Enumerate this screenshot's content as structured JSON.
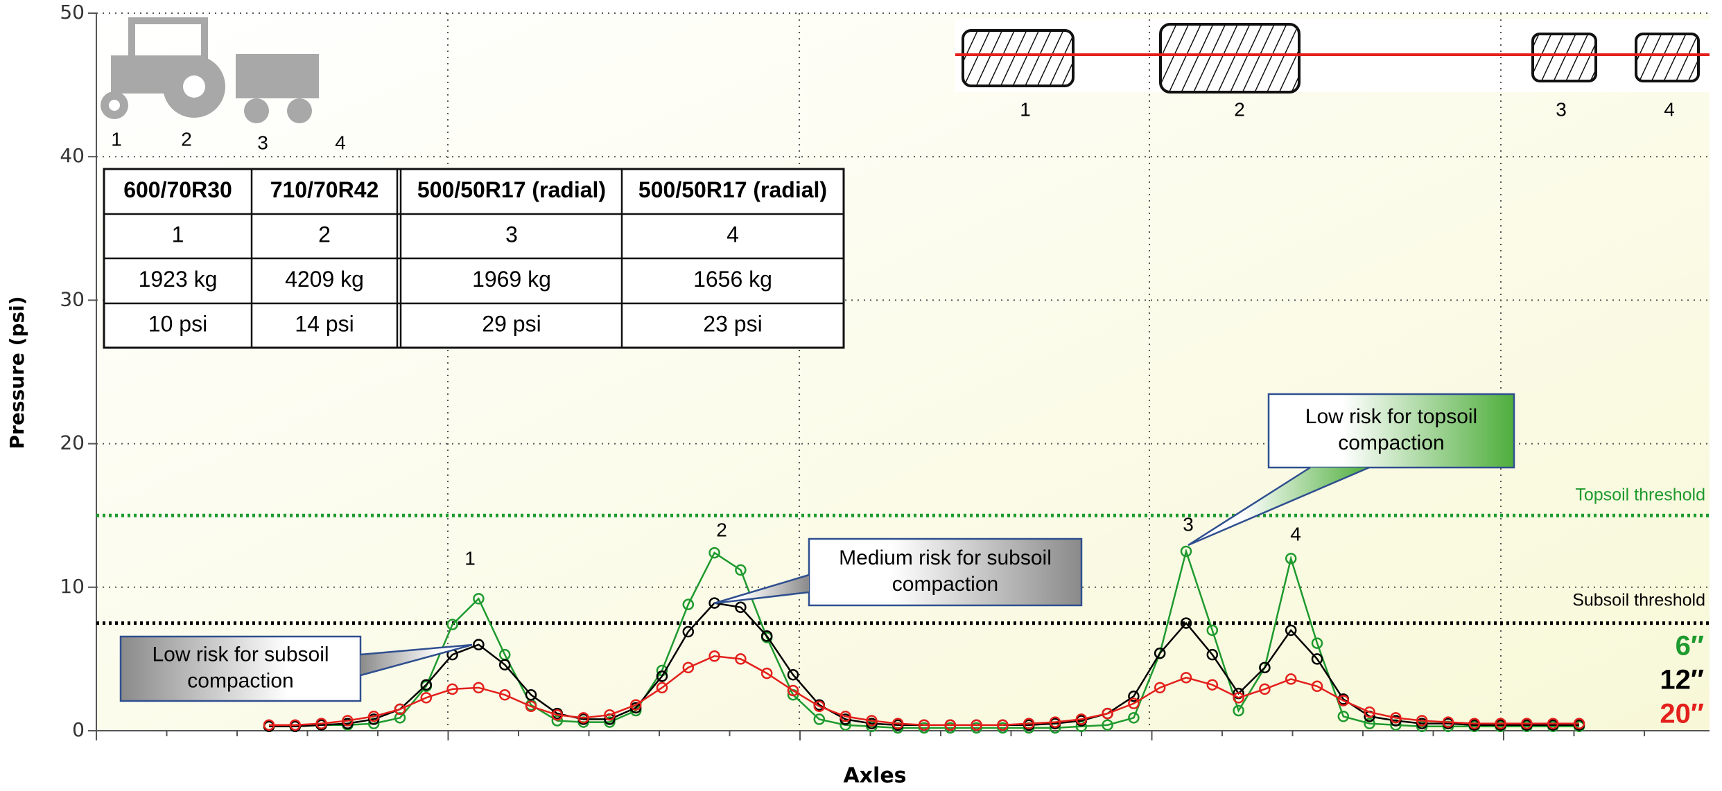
{
  "chart_data": {
    "type": "line",
    "y_label": "Pressure (psi)",
    "x_label": "Axles",
    "ylim": [
      0,
      50
    ],
    "yticks": [
      0,
      10,
      20,
      30,
      40,
      50
    ],
    "grid": true,
    "categories": [
      null,
      null,
      null,
      null,
      null,
      null,
      null,
      null,
      null,
      null,
      null,
      null,
      null,
      null,
      null,
      null,
      null,
      null,
      null,
      null,
      null,
      null,
      null,
      null,
      null,
      null,
      null,
      null,
      null,
      null,
      null,
      null,
      null,
      null,
      null,
      null,
      null,
      null,
      null,
      null,
      null,
      null,
      null,
      null,
      null,
      null,
      null,
      null,
      null,
      null,
      null
    ],
    "series": [
      {
        "name": "6″",
        "color": "#1e9a2e",
        "values": [
          0.3,
          0.3,
          0.4,
          0.4,
          0.5,
          0.9,
          3.1,
          7.4,
          9.2,
          5.3,
          1.8,
          0.7,
          0.6,
          0.6,
          1.4,
          4.2,
          8.8,
          12.4,
          11.2,
          6.5,
          2.5,
          0.8,
          0.4,
          0.3,
          0.2,
          0.2,
          0.2,
          0.2,
          0.2,
          0.2,
          0.2,
          0.3,
          0.4,
          0.9,
          5.4,
          12.5,
          7.0,
          1.4,
          4.4,
          12.0,
          6.1,
          1.0,
          0.5,
          0.4,
          0.3,
          0.3,
          0.3,
          0.3,
          0.3,
          0.3,
          0.3
        ]
      },
      {
        "name": "12″",
        "color": "#000000",
        "values": [
          0.3,
          0.3,
          0.4,
          0.5,
          0.8,
          1.5,
          3.2,
          5.3,
          6.0,
          4.6,
          2.5,
          1.2,
          0.8,
          0.8,
          1.6,
          3.8,
          6.9,
          8.9,
          8.6,
          6.6,
          3.9,
          1.8,
          0.8,
          0.5,
          0.4,
          0.4,
          0.4,
          0.4,
          0.4,
          0.4,
          0.5,
          0.7,
          1.2,
          2.4,
          5.4,
          7.5,
          5.3,
          2.6,
          4.4,
          7.0,
          5.0,
          2.2,
          1.0,
          0.7,
          0.5,
          0.5,
          0.4,
          0.4,
          0.4,
          0.4,
          0.4
        ]
      },
      {
        "name": "20″",
        "color": "#e3201c",
        "values": [
          0.4,
          0.4,
          0.5,
          0.7,
          1.0,
          1.5,
          2.3,
          2.9,
          3.0,
          2.5,
          1.7,
          1.1,
          0.9,
          1.1,
          1.8,
          3.0,
          4.4,
          5.2,
          5.0,
          4.0,
          2.8,
          1.7,
          1.0,
          0.7,
          0.5,
          0.4,
          0.4,
          0.4,
          0.4,
          0.5,
          0.6,
          0.8,
          1.2,
          1.9,
          3.0,
          3.7,
          3.2,
          2.3,
          2.9,
          3.6,
          3.1,
          2.1,
          1.3,
          0.9,
          0.7,
          0.6,
          0.5,
          0.5,
          0.5,
          0.5,
          0.5
        ]
      }
    ],
    "thresholds": [
      {
        "label": "Topsoil threshold",
        "value": 15,
        "color": "#1e9a2e"
      },
      {
        "label": "Subsoil threshold",
        "value": 7.5,
        "color": "#000000"
      }
    ],
    "peak_labels": [
      "1",
      "2",
      "3",
      "4"
    ],
    "callouts": [
      {
        "lines": [
          "Low risk for subsoil",
          "compaction"
        ],
        "color": "#8a8a8a"
      },
      {
        "lines": [
          "Medium risk for subsoil",
          "compaction"
        ],
        "color": "#8a8a8a"
      },
      {
        "lines": [
          "Low risk for topsoil",
          "compaction"
        ],
        "color": "#4fae3c"
      }
    ]
  },
  "icon_labels": [
    "1",
    "2",
    "3",
    "4"
  ],
  "tire_labels": [
    "1",
    "2",
    "3",
    "4"
  ],
  "table": {
    "rows": [
      [
        "600/70R30",
        "710/70R42",
        "500/50R17 (radial)",
        "500/50R17 (radial)"
      ],
      [
        "1",
        "2",
        "3",
        "4"
      ],
      [
        "1923 kg",
        "4209 kg",
        "1969 kg",
        "1656 kg"
      ],
      [
        "10 psi",
        "14 psi",
        "29 psi",
        "23 psi"
      ]
    ]
  }
}
